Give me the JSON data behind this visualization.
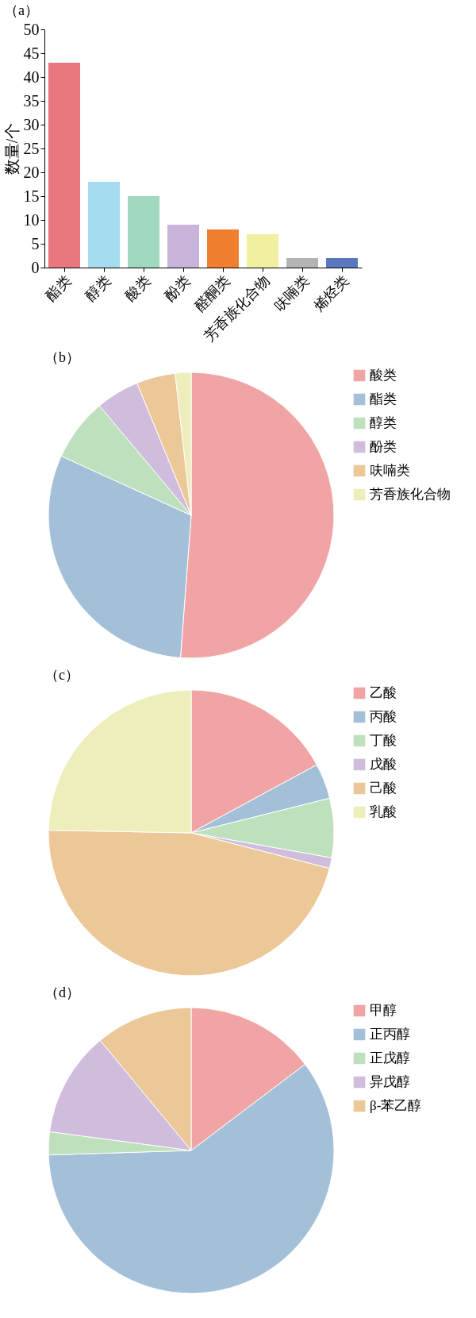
{
  "chart_data": [
    {
      "type": "bar",
      "title": "（a）",
      "ylabel": "数量/个",
      "categories": [
        "酯类",
        "醇类",
        "酸类",
        "酚类",
        "醛酮类",
        "芳香族化合物",
        "呋喃类",
        "烯烃类"
      ],
      "values": [
        43,
        18,
        15,
        9,
        8,
        7,
        2,
        2
      ],
      "colors": [
        "#e8787e",
        "#a6dcf0",
        "#a0d8c0",
        "#c8b4d8",
        "#f08030",
        "#f0f0a0",
        "#b4b4b4",
        "#5a78c0"
      ],
      "ylim": [
        0,
        50
      ],
      "yticks": [
        0,
        5,
        10,
        15,
        20,
        25,
        30,
        35,
        40,
        45,
        50
      ],
      "grid": false,
      "legend": false
    },
    {
      "type": "pie",
      "title": "（b）",
      "categories": [
        "酸类",
        "酯类",
        "醇类",
        "酚类",
        "呋喃类",
        "芳香族化合物"
      ],
      "values": [
        51.2,
        30.6,
        7.1,
        4.9,
        4.4,
        1.8
      ],
      "colors": [
        "#f0a4a4",
        "#a4c0d8",
        "#bfe0bc",
        "#d0bcdc",
        "#ecc898",
        "#eeeebc"
      ],
      "legend": "right"
    },
    {
      "type": "pie",
      "title": "（c）",
      "categories": [
        "乙酸",
        "丙酸",
        "丁酸",
        "戊酸",
        "己酸",
        "乳酸"
      ],
      "values": [
        17.1,
        4.0,
        6.7,
        1.2,
        46.3,
        24.7
      ],
      "colors": [
        "#f0a4a4",
        "#a4c0d8",
        "#bfe0bc",
        "#d0bcdc",
        "#ecc898",
        "#eeeebc"
      ],
      "legend": "right"
    },
    {
      "type": "pie",
      "title": "（d）",
      "categories": [
        "甲醇",
        "正丙醇",
        "正戊醇",
        "异戊醇",
        "β-苯乙醇"
      ],
      "values": [
        14.7,
        59.8,
        2.6,
        11.9,
        11.0
      ],
      "colors": [
        "#f0a4a4",
        "#a4c0d8",
        "#bfe0bc",
        "#d0bcdc",
        "#ecc898"
      ],
      "legend": "right"
    }
  ]
}
